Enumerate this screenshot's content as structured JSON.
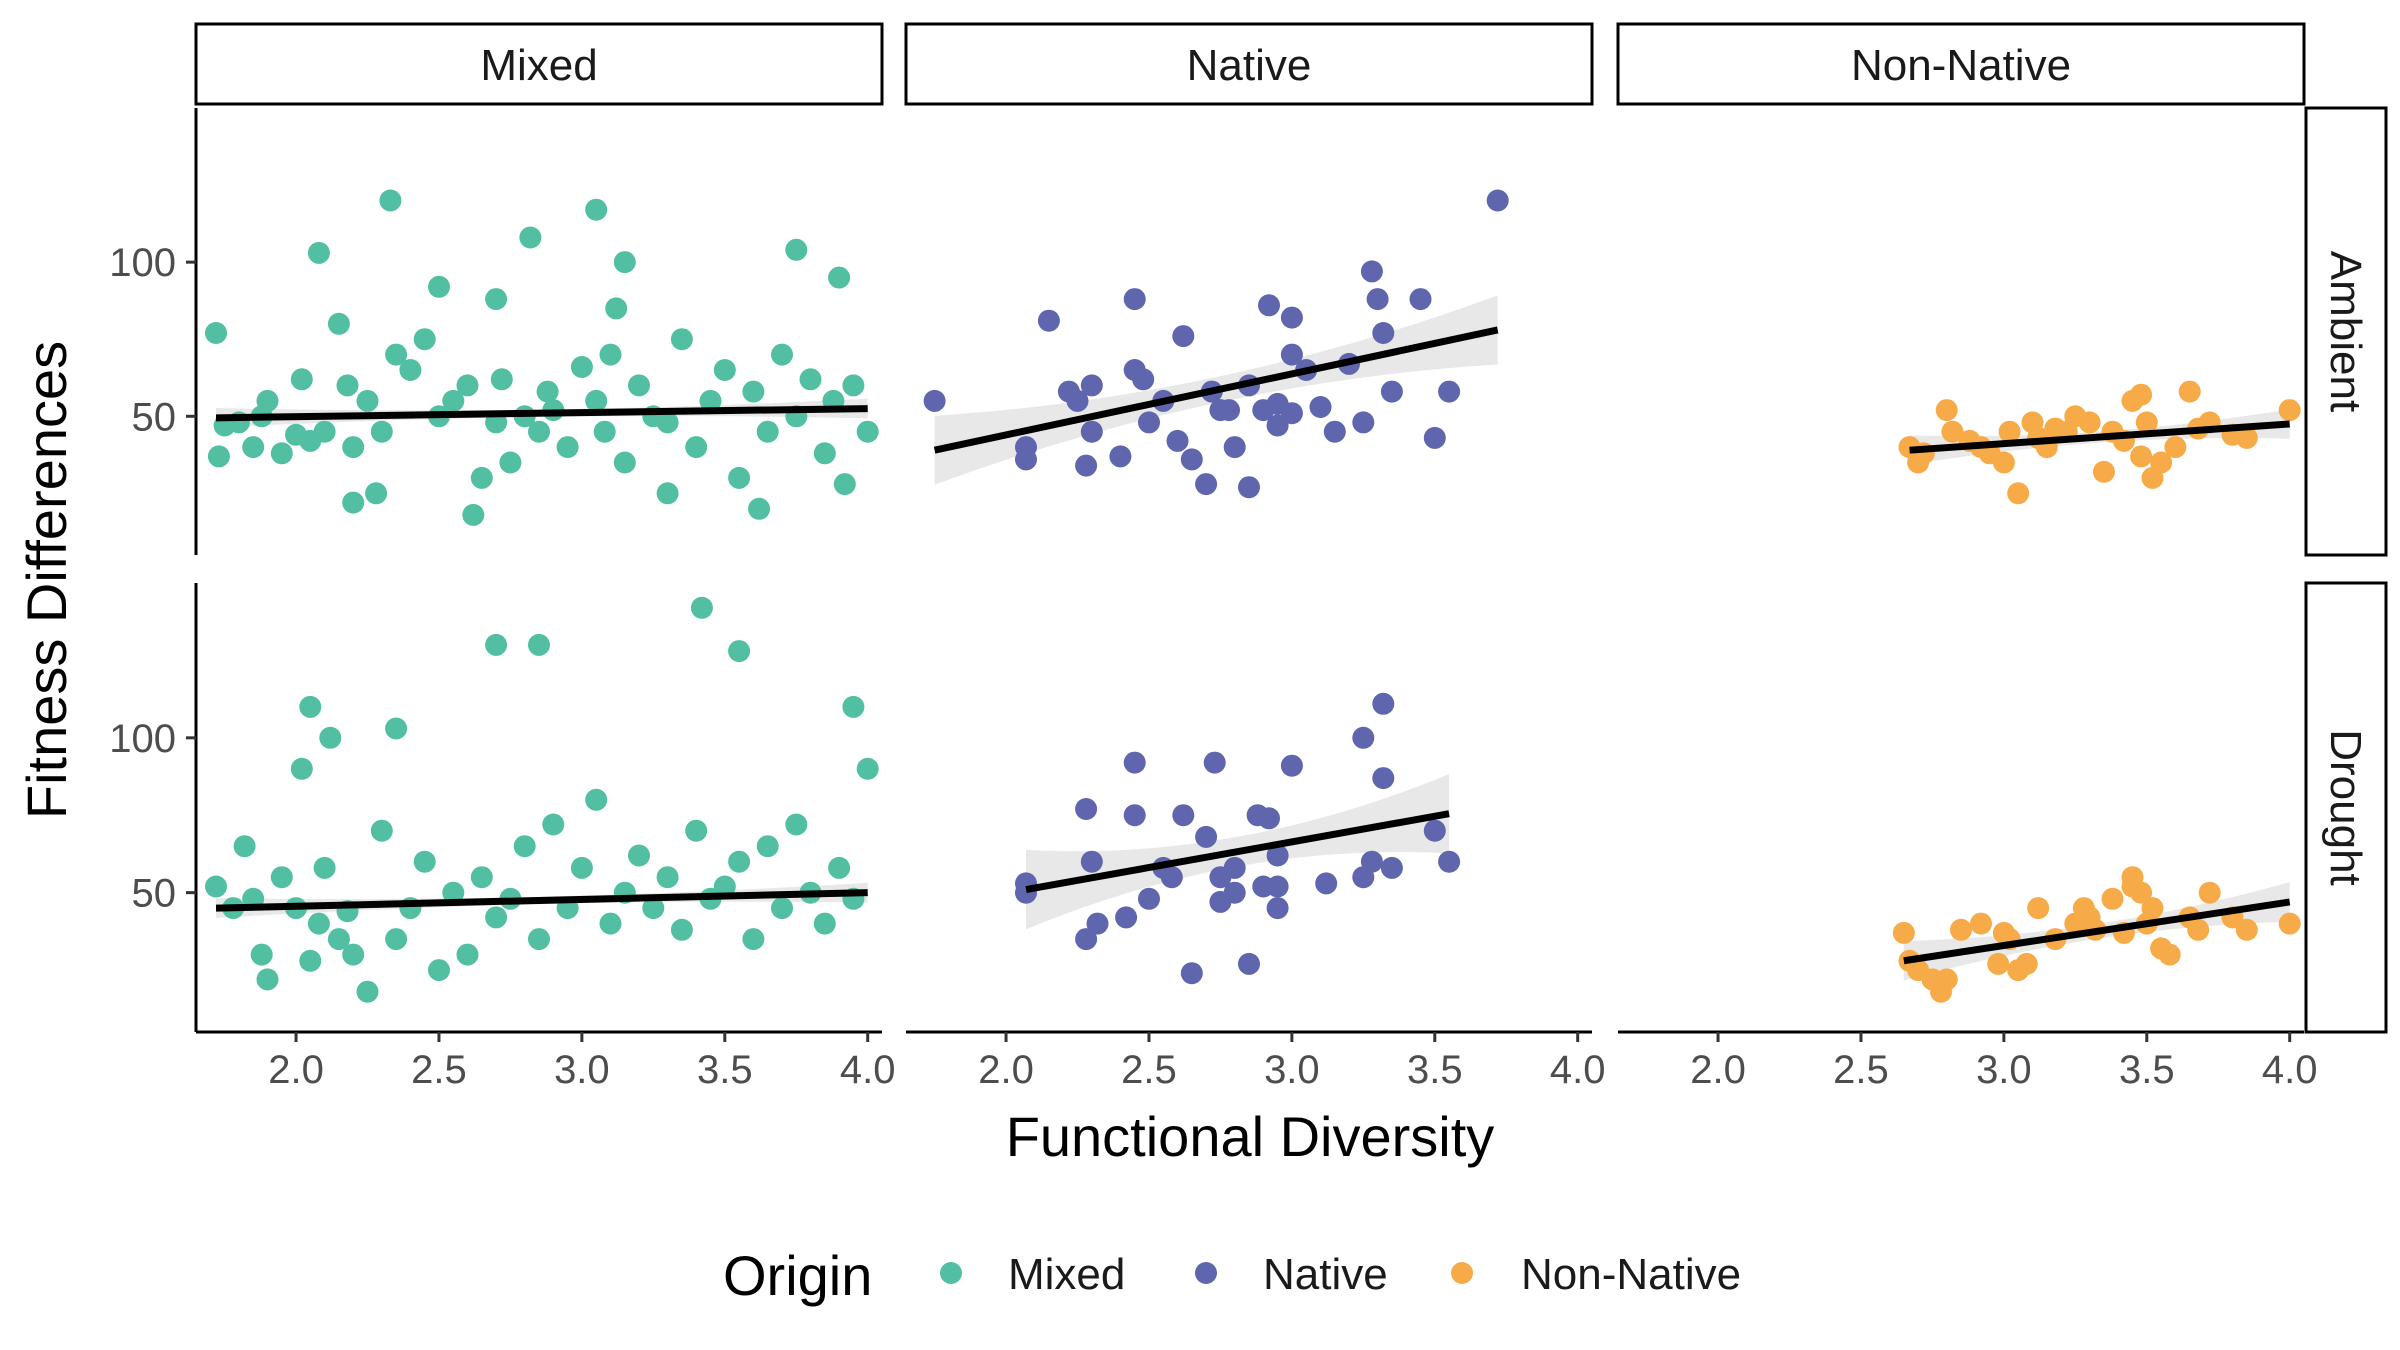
{
  "chart_data": {
    "type": "scatter",
    "facets": {
      "columns": [
        "Mixed",
        "Native",
        "Non-Native"
      ],
      "rows": [
        "Ambient",
        "Drought"
      ]
    },
    "xlabel": "Functional Diversity",
    "ylabel": "Fitness Differences",
    "xlim": [
      1.65,
      4.05
    ],
    "ylim": [
      5,
      150
    ],
    "xticks": [
      2.0,
      2.5,
      3.0,
      3.5,
      4.0
    ],
    "xtick_labels": [
      "2.0",
      "2.5",
      "3.0",
      "3.5",
      "4.0"
    ],
    "yticks": [
      50,
      100
    ],
    "ytick_labels": [
      "50",
      "100"
    ],
    "legend": {
      "title": "Origin",
      "position": "bottom",
      "entries": [
        {
          "label": "Mixed",
          "color": "#52bfa3"
        },
        {
          "label": "Native",
          "color": "#5f66ad"
        },
        {
          "label": "Non-Native",
          "color": "#f7ab48"
        }
      ]
    },
    "fit_line_color": "#000000",
    "ci_band_color": "#cccccc",
    "panels": [
      {
        "row": "Ambient",
        "col": "Mixed",
        "color": "#52bfa3",
        "x": [
          1.72,
          1.73,
          1.75,
          1.8,
          1.85,
          1.88,
          1.9,
          1.95,
          2.0,
          2.02,
          2.05,
          2.08,
          2.1,
          2.15,
          2.18,
          2.2,
          2.25,
          2.28,
          2.3,
          2.35,
          2.4,
          2.45,
          2.5,
          2.55,
          2.6,
          2.65,
          2.7,
          2.72,
          2.75,
          2.8,
          2.85,
          2.88,
          2.9,
          2.95,
          3.0,
          3.05,
          3.08,
          3.1,
          3.12,
          3.15,
          3.2,
          3.25,
          3.3,
          3.35,
          3.4,
          3.45,
          3.5,
          3.55,
          3.6,
          3.65,
          3.7,
          3.75,
          3.8,
          3.85,
          3.88,
          3.9,
          3.95,
          4.0,
          2.33,
          2.5,
          2.82,
          3.05,
          3.75,
          2.7,
          3.15,
          2.62,
          3.62,
          3.92,
          2.2,
          3.3
        ],
        "y": [
          77,
          37,
          47,
          48,
          40,
          50,
          55,
          38,
          44,
          62,
          42,
          103,
          45,
          80,
          60,
          40,
          55,
          25,
          45,
          70,
          65,
          75,
          50,
          55,
          60,
          30,
          48,
          62,
          35,
          50,
          45,
          58,
          52,
          40,
          66,
          55,
          45,
          70,
          85,
          35,
          60,
          50,
          48,
          75,
          40,
          55,
          65,
          30,
          58,
          45,
          70,
          50,
          62,
          38,
          55,
          95,
          60,
          45,
          120,
          92,
          108,
          117,
          104,
          88,
          100,
          18,
          20,
          28,
          22,
          25
        ],
        "fit": {
          "x0": 1.72,
          "x1": 4.0,
          "y0": 49.5,
          "y1": 52.5,
          "se": 2.0
        }
      },
      {
        "row": "Ambient",
        "col": "Native",
        "color": "#5f66ad",
        "x": [
          1.75,
          2.07,
          2.07,
          2.15,
          2.22,
          2.25,
          2.28,
          2.3,
          2.3,
          2.4,
          2.45,
          2.45,
          2.48,
          2.5,
          2.55,
          2.6,
          2.62,
          2.65,
          2.7,
          2.72,
          2.75,
          2.78,
          2.8,
          2.85,
          2.9,
          2.92,
          2.95,
          3.0,
          3.0,
          3.05,
          3.1,
          3.15,
          3.2,
          3.25,
          3.28,
          3.3,
          3.32,
          3.35,
          3.45,
          3.5,
          3.55,
          3.72,
          2.95,
          3.0,
          2.85
        ],
        "y": [
          55,
          40,
          36,
          81,
          58,
          55,
          34,
          45,
          60,
          37,
          88,
          65,
          62,
          48,
          55,
          42,
          76,
          36,
          28,
          58,
          52,
          52,
          40,
          27,
          52,
          86,
          54,
          82,
          70,
          65,
          53,
          45,
          67,
          48,
          97,
          88,
          77,
          58,
          88,
          43,
          58,
          120,
          47,
          51,
          60
        ],
        "fit": {
          "x0": 1.75,
          "x1": 3.72,
          "y0": 39,
          "y1": 78,
          "se": 7.0
        }
      },
      {
        "row": "Ambient",
        "col": "Non-Native",
        "color": "#f7ab48",
        "x": [
          2.67,
          2.7,
          2.72,
          2.8,
          2.82,
          2.88,
          2.92,
          2.95,
          3.0,
          3.02,
          3.05,
          3.1,
          3.15,
          3.18,
          3.22,
          3.25,
          3.3,
          3.35,
          3.38,
          3.42,
          3.45,
          3.48,
          3.5,
          3.52,
          3.55,
          3.6,
          3.65,
          3.68,
          3.72,
          3.8,
          3.85,
          4.0,
          3.48,
          3.12
        ],
        "y": [
          40,
          35,
          38,
          52,
          45,
          42,
          40,
          38,
          35,
          45,
          25,
          48,
          40,
          46,
          45,
          50,
          48,
          32,
          45,
          42,
          55,
          57,
          48,
          30,
          35,
          40,
          58,
          46,
          48,
          44,
          43,
          52,
          37,
          43
        ],
        "fit": {
          "x0": 2.67,
          "x1": 4.0,
          "y0": 39,
          "y1": 47.5,
          "se": 3.0
        }
      },
      {
        "row": "Drought",
        "col": "Mixed",
        "color": "#52bfa3",
        "x": [
          1.72,
          1.78,
          1.82,
          1.85,
          1.88,
          1.9,
          1.95,
          2.0,
          2.02,
          2.05,
          2.08,
          2.1,
          2.12,
          2.15,
          2.18,
          2.2,
          2.25,
          2.3,
          2.35,
          2.4,
          2.45,
          2.5,
          2.55,
          2.6,
          2.65,
          2.7,
          2.75,
          2.8,
          2.85,
          2.9,
          2.95,
          3.0,
          3.05,
          3.1,
          3.15,
          3.2,
          3.25,
          3.3,
          3.35,
          3.4,
          3.45,
          3.5,
          3.55,
          3.6,
          3.65,
          3.7,
          3.75,
          3.8,
          3.85,
          3.9,
          3.95,
          4.0,
          2.7,
          2.85,
          3.42,
          3.55,
          2.05,
          3.95,
          2.35
        ],
        "y": [
          52,
          45,
          65,
          48,
          30,
          22,
          55,
          45,
          90,
          28,
          40,
          58,
          100,
          35,
          44,
          30,
          18,
          70,
          35,
          45,
          60,
          25,
          50,
          30,
          55,
          42,
          48,
          65,
          35,
          72,
          45,
          58,
          80,
          40,
          50,
          62,
          45,
          55,
          38,
          70,
          48,
          52,
          60,
          35,
          65,
          45,
          72,
          50,
          40,
          58,
          48,
          90,
          130,
          130,
          142,
          128,
          110,
          110,
          103
        ],
        "fit": {
          "x0": 1.72,
          "x1": 4.0,
          "y0": 45,
          "y1": 50,
          "se": 2.0
        }
      },
      {
        "row": "Drought",
        "col": "Native",
        "color": "#5f66ad",
        "x": [
          2.07,
          2.07,
          2.28,
          2.28,
          2.3,
          2.32,
          2.42,
          2.45,
          2.45,
          2.5,
          2.55,
          2.58,
          2.62,
          2.65,
          2.7,
          2.73,
          2.75,
          2.75,
          2.8,
          2.8,
          2.85,
          2.88,
          2.9,
          2.92,
          2.95,
          2.95,
          2.95,
          3.0,
          3.12,
          3.25,
          3.25,
          3.28,
          3.32,
          3.32,
          3.35,
          3.5,
          3.55
        ],
        "y": [
          53,
          50,
          77,
          35,
          60,
          40,
          42,
          75,
          92,
          48,
          58,
          55,
          75,
          24,
          68,
          92,
          55,
          47,
          58,
          50,
          27,
          75,
          52,
          74,
          45,
          52,
          62,
          91,
          53,
          100,
          55,
          60,
          111,
          87,
          58,
          70,
          60
        ],
        "fit": {
          "x0": 2.07,
          "x1": 3.55,
          "y0": 51,
          "y1": 75.5,
          "se": 8.0
        }
      },
      {
        "row": "Drought",
        "col": "Non-Native",
        "color": "#f7ab48",
        "x": [
          2.65,
          2.67,
          2.7,
          2.75,
          2.78,
          2.8,
          2.85,
          2.92,
          2.98,
          3.0,
          3.02,
          3.05,
          3.08,
          3.12,
          3.18,
          3.25,
          3.28,
          3.32,
          3.38,
          3.42,
          3.45,
          3.48,
          3.5,
          3.52,
          3.55,
          3.58,
          3.65,
          3.68,
          3.72,
          3.8,
          3.85,
          4.0,
          3.45,
          3.3
        ],
        "y": [
          37,
          28,
          25,
          22,
          18,
          22,
          38,
          40,
          27,
          37,
          35,
          25,
          27,
          45,
          35,
          40,
          45,
          38,
          48,
          37,
          52,
          50,
          40,
          45,
          32,
          30,
          42,
          38,
          50,
          42,
          38,
          40,
          55,
          42
        ],
        "fit": {
          "x0": 2.65,
          "x1": 4.0,
          "y0": 28,
          "y1": 47,
          "se": 4.0
        }
      }
    ]
  }
}
